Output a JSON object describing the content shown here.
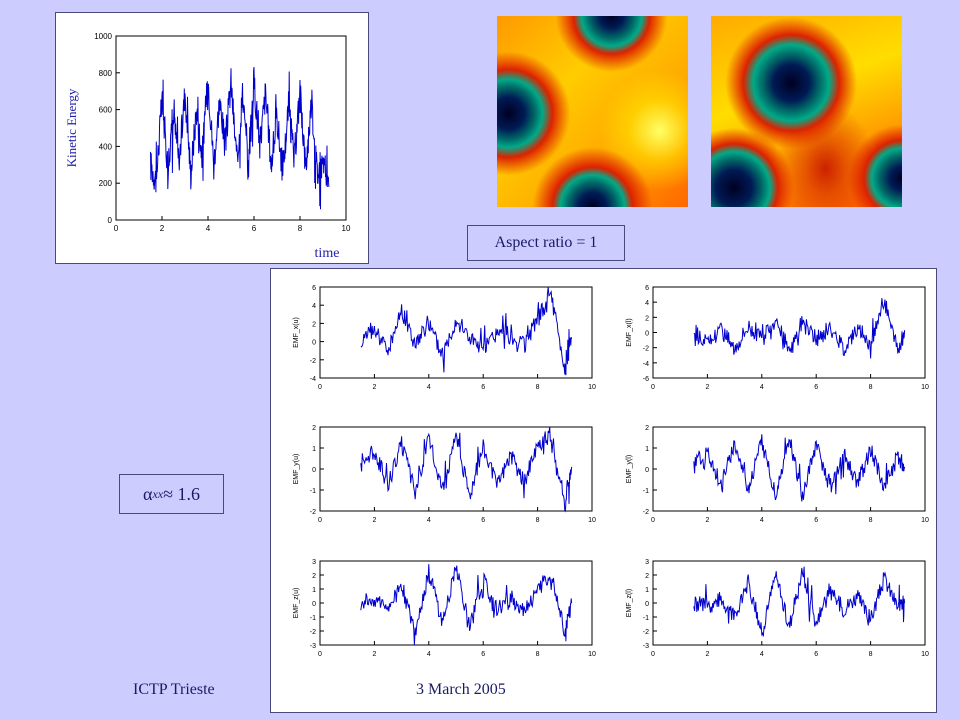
{
  "footer": {
    "left": "ICTP Trieste",
    "center": "3 March 2005"
  },
  "aspect_label": "Aspect ratio = 1",
  "alpha_label": {
    "symbol": "α",
    "sub": "xx",
    "rest": " ≈ 1.6"
  },
  "colors": {
    "background": "#ccccff",
    "line": "#0000cc",
    "text": "#1a1a66"
  },
  "chart_data": [
    {
      "type": "line",
      "title": "",
      "xlabel": "time",
      "ylabel": "Kinetic Energy",
      "xlim": [
        0,
        10
      ],
      "ylim": [
        0,
        1000
      ],
      "xticks": [
        "0",
        "2",
        "4",
        "6",
        "8",
        "10"
      ],
      "yticks": [
        "0",
        "200",
        "400",
        "600",
        "800",
        "1000"
      ],
      "series": [
        {
          "x": [
            1.5,
            1.75,
            2.0,
            2.25,
            2.5,
            2.75,
            3.0,
            3.25,
            3.5,
            3.75,
            4.0,
            4.25,
            4.5,
            4.75,
            5.0,
            5.25,
            5.5,
            5.75,
            6.0,
            6.25,
            6.5,
            6.75,
            7.0,
            7.25,
            7.5,
            7.75,
            8.0,
            8.25,
            8.5,
            8.75,
            9.0,
            9.25
          ],
          "values": [
            300,
            220,
            650,
            300,
            550,
            320,
            700,
            250,
            600,
            350,
            780,
            300,
            650,
            400,
            750,
            320,
            680,
            280,
            760,
            400,
            690,
            300,
            560,
            250,
            620,
            320,
            700,
            280,
            650,
            250,
            320,
            180
          ]
        }
      ]
    },
    {
      "type": "line",
      "ylabel": "EMF_x(u)",
      "xlim": [
        0,
        10
      ],
      "ylim": [
        -4,
        6
      ],
      "xticks": [
        "0",
        "2",
        "4",
        "6",
        "8",
        "10"
      ],
      "yticks": [
        "-4",
        "-2",
        "0",
        "2",
        "4",
        "6"
      ],
      "series": [
        {
          "x": [
            1.5,
            2.0,
            2.5,
            3.0,
            3.5,
            4.0,
            4.5,
            5.0,
            5.5,
            6.0,
            6.5,
            7.0,
            7.5,
            8.0,
            8.5,
            9.0,
            9.25
          ],
          "values": [
            0.2,
            1.5,
            -1.0,
            3.5,
            -0.5,
            2.0,
            -1.5,
            2.5,
            0.5,
            -1.0,
            1.0,
            0.2,
            -0.5,
            2.5,
            5.0,
            -3.0,
            0.3
          ]
        }
      ]
    },
    {
      "type": "line",
      "ylabel": "EMF_x(l)",
      "xlim": [
        0,
        10
      ],
      "ylim": [
        -6,
        6
      ],
      "xticks": [
        "0",
        "2",
        "4",
        "6",
        "8",
        "10"
      ],
      "yticks": [
        "-6",
        "-4",
        "-2",
        "0",
        "2",
        "4",
        "6"
      ],
      "series": [
        {
          "x": [
            1.5,
            2.0,
            2.5,
            3.0,
            3.5,
            4.0,
            4.5,
            5.0,
            5.5,
            6.0,
            6.5,
            7.0,
            7.5,
            8.0,
            8.5,
            9.0,
            9.25
          ],
          "values": [
            0.2,
            -1.5,
            0.5,
            -2.0,
            1.0,
            -1.0,
            2.0,
            -2.5,
            1.5,
            -1.0,
            0.5,
            -2.0,
            0.5,
            -1.5,
            4.5,
            -2.5,
            0.3
          ]
        }
      ]
    },
    {
      "type": "line",
      "ylabel": "EMF_y(u)",
      "xlim": [
        0,
        10
      ],
      "ylim": [
        -2,
        2
      ],
      "xticks": [
        "0",
        "2",
        "4",
        "6",
        "8",
        "10"
      ],
      "yticks": [
        "-2",
        "-1",
        "0",
        "1",
        "2"
      ],
      "series": [
        {
          "x": [
            1.5,
            2.0,
            2.5,
            3.0,
            3.5,
            4.0,
            4.5,
            5.0,
            5.5,
            6.0,
            6.5,
            7.0,
            7.5,
            8.0,
            8.5,
            9.0,
            9.25
          ],
          "values": [
            0.2,
            0.9,
            -0.8,
            1.2,
            -1.1,
            1.4,
            -0.9,
            1.5,
            -1.2,
            1.1,
            -0.8,
            0.7,
            -0.6,
            1.0,
            1.7,
            -1.8,
            0.1
          ]
        }
      ]
    },
    {
      "type": "line",
      "ylabel": "EMF_y(l)",
      "xlim": [
        0,
        10
      ],
      "ylim": [
        -2,
        2
      ],
      "xticks": [
        "0",
        "2",
        "4",
        "6",
        "8",
        "10"
      ],
      "yticks": [
        "-2",
        "-1",
        "0",
        "1",
        "2"
      ],
      "series": [
        {
          "x": [
            1.5,
            2.0,
            2.5,
            3.0,
            3.5,
            4.0,
            4.5,
            5.0,
            5.5,
            6.0,
            6.5,
            7.0,
            7.5,
            8.0,
            8.5,
            9.0,
            9.25
          ],
          "values": [
            0.1,
            0.8,
            -0.7,
            1.1,
            -1.0,
            1.3,
            -1.2,
            1.5,
            -1.4,
            1.2,
            -0.9,
            0.8,
            -0.7,
            0.9,
            -0.8,
            0.6,
            0.1
          ]
        }
      ]
    },
    {
      "type": "line",
      "ylabel": "EMF_z(u)",
      "xlim": [
        0,
        10
      ],
      "ylim": [
        -3,
        3
      ],
      "xticks": [
        "0",
        "2",
        "4",
        "6",
        "8",
        "10"
      ],
      "yticks": [
        "-3",
        "-2",
        "-1",
        "0",
        "1",
        "2",
        "3"
      ],
      "series": [
        {
          "x": [
            1.5,
            2.0,
            2.5,
            3.0,
            3.5,
            4.0,
            4.5,
            5.0,
            5.5,
            6.0,
            6.5,
            7.0,
            7.5,
            8.0,
            8.5,
            9.0,
            9.25
          ],
          "values": [
            0.0,
            0.3,
            -0.4,
            1.2,
            -2.2,
            2.3,
            -1.5,
            2.7,
            -1.8,
            1.6,
            -0.5,
            0.2,
            -0.4,
            0.8,
            2.3,
            -2.0,
            0.0
          ]
        }
      ]
    },
    {
      "type": "line",
      "ylabel": "EMF_z(l)",
      "xlim": [
        0,
        10
      ],
      "ylim": [
        -3,
        3
      ],
      "xticks": [
        "0",
        "2",
        "4",
        "6",
        "8",
        "10"
      ],
      "yticks": [
        "-3",
        "-2",
        "-1",
        "0",
        "1",
        "2",
        "3"
      ],
      "series": [
        {
          "x": [
            1.5,
            2.0,
            2.5,
            3.0,
            3.5,
            4.0,
            4.5,
            5.0,
            5.5,
            6.0,
            6.5,
            7.0,
            7.5,
            8.0,
            8.5,
            9.0,
            9.25
          ],
          "values": [
            0.0,
            -0.3,
            0.4,
            -1.0,
            1.5,
            -2.1,
            2.0,
            -1.7,
            2.2,
            -1.5,
            0.8,
            -0.4,
            0.5,
            -1.2,
            1.8,
            -0.3,
            0.0
          ]
        }
      ]
    }
  ]
}
